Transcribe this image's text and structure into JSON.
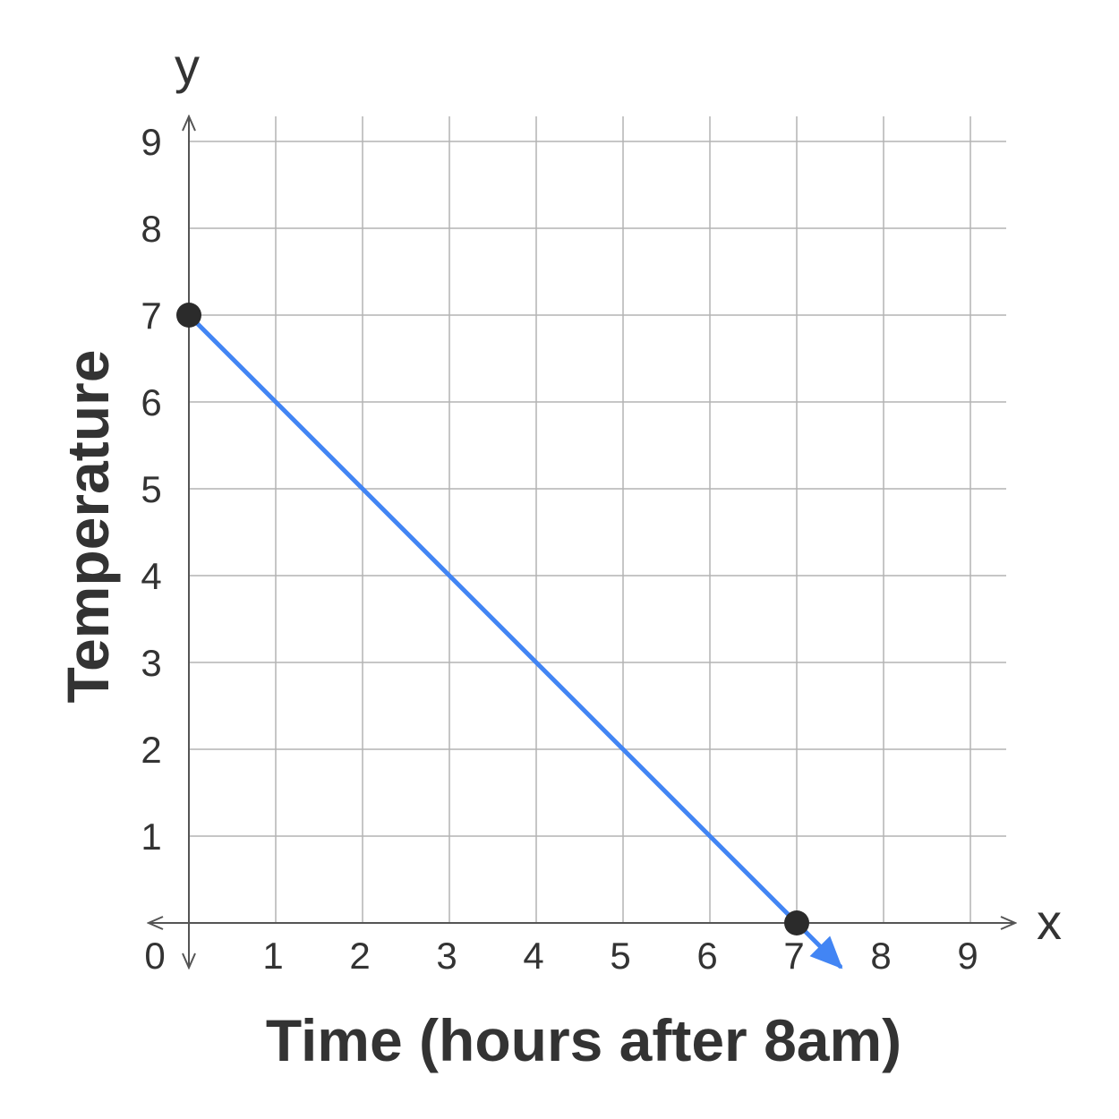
{
  "chart_data": {
    "type": "line",
    "xlabel": "Time (hours after 8am)",
    "ylabel": "Temperature",
    "x_axis_letter": "x",
    "y_axis_letter": "y",
    "origin_label": "0",
    "xlim": [
      0,
      9
    ],
    "ylim": [
      0,
      9
    ],
    "x_ticks": [
      "1",
      "2",
      "3",
      "4",
      "5",
      "6",
      "7",
      "8",
      "9"
    ],
    "y_ticks": [
      "1",
      "2",
      "3",
      "4",
      "5",
      "6",
      "7",
      "8",
      "9"
    ],
    "grid": true,
    "series": [
      {
        "x": [
          0,
          7.5
        ],
        "y": [
          7,
          -0.5
        ],
        "color": "#4285f4",
        "arrow_end": true
      }
    ],
    "points": [
      {
        "x": 0,
        "y": 7,
        "color": "#2b2b2b"
      },
      {
        "x": 7,
        "y": 0,
        "color": "#2b2b2b"
      }
    ]
  }
}
